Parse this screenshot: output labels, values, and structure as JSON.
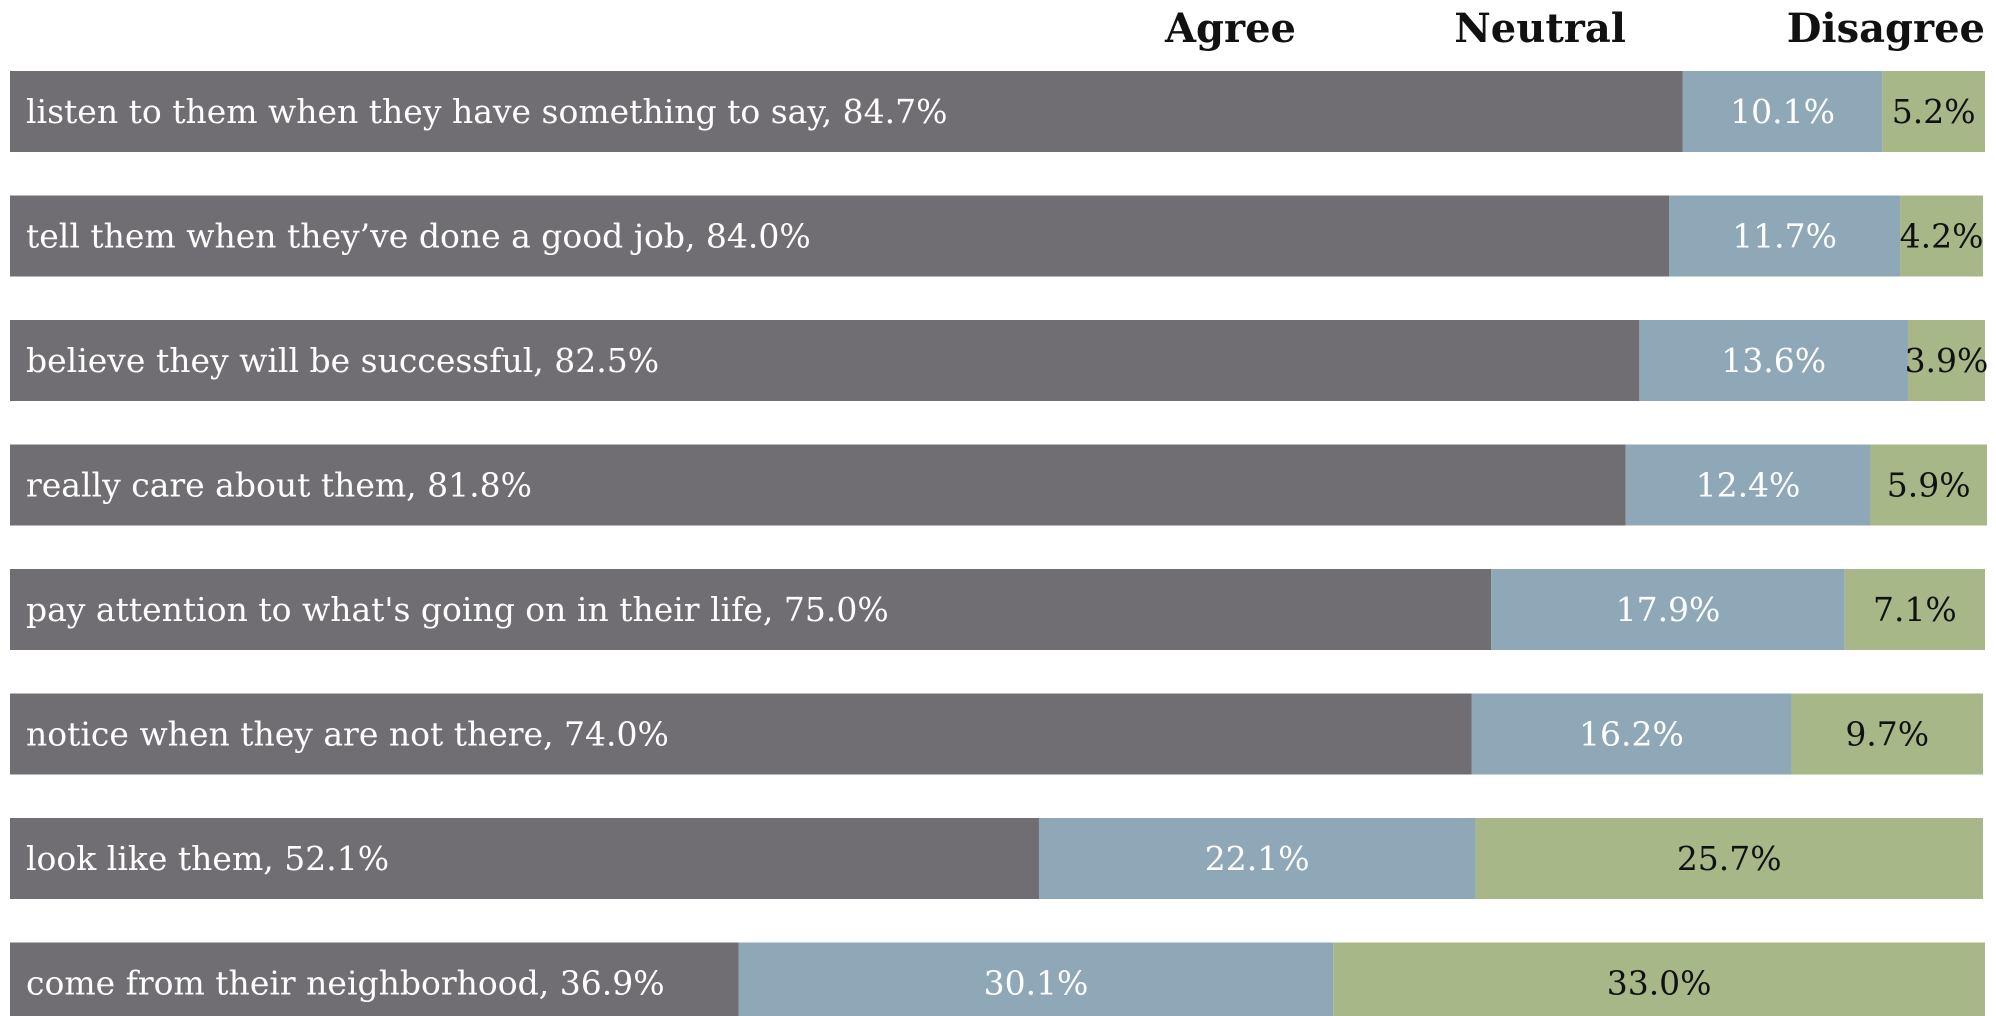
{
  "chart_data": {
    "type": "bar",
    "orientation": "horizontal",
    "stacked": true,
    "legend_placement": "top-right",
    "grid": false,
    "xlim": [
      0,
      100
    ],
    "value_unit": "%",
    "categories": [
      "listen to them when they have something to say",
      "tell them when they’ve done a good job",
      "believe they will be successful",
      "really care about them",
      "pay attention to what's going on in their life",
      "notice when they are not there",
      "look like them",
      "come from their neighborhood"
    ],
    "series": [
      {
        "name": "Agree",
        "color": "#706e73",
        "label_color": "#ffffff",
        "values": [
          84.7,
          84.0,
          82.5,
          81.8,
          75.0,
          74.0,
          52.1,
          36.9
        ]
      },
      {
        "name": "Neutral",
        "color": "#8fa8b8",
        "label_color": "#ffffff",
        "values": [
          10.1,
          11.7,
          13.6,
          12.4,
          17.9,
          16.2,
          22.1,
          30.1
        ]
      },
      {
        "name": "Disagree",
        "color": "#a7b787",
        "label_color": "#111111",
        "values": [
          5.2,
          4.2,
          3.9,
          5.9,
          7.1,
          9.7,
          25.7,
          33.0
        ]
      }
    ]
  }
}
